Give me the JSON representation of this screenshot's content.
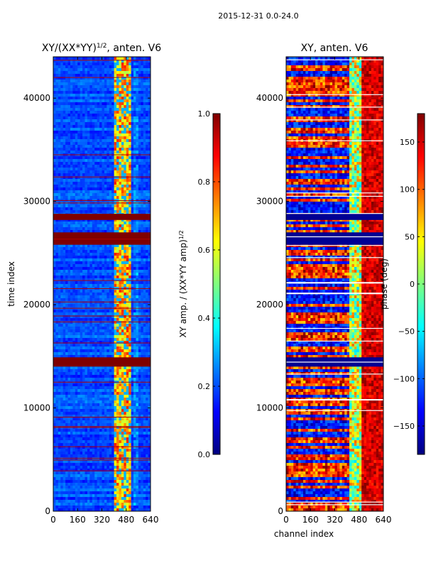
{
  "figure_title": "2015-12-31 0.0-24.0",
  "colormap": [
    "#00007f",
    "#0000ff",
    "#007fff",
    "#00ffff",
    "#7fff7f",
    "#ffff00",
    "#ff7f00",
    "#ff0000",
    "#7f0000"
  ],
  "chart_data": [
    {
      "type": "heatmap",
      "title": "XY/(XX*YY)",
      "title_exponent": "1/2",
      "title_suffix": ", anten. V6",
      "xlabel": "",
      "ylabel": "time index",
      "xlim": [
        0,
        640
      ],
      "ylim": [
        0,
        44000
      ],
      "xticks": [
        0,
        160,
        320,
        480,
        640
      ],
      "yticks": [
        0,
        10000,
        20000,
        30000,
        40000
      ],
      "colorbar": {
        "label": "XY amp. / (XX*YY amp)",
        "label_exponent": "1/2",
        "range": [
          0.0,
          1.0
        ],
        "ticks": [
          "0.0",
          "0.2",
          "0.4",
          "0.6",
          "0.8",
          "1.0"
        ],
        "tick_values": [
          0.0,
          0.2,
          0.4,
          0.6,
          0.8,
          1.0
        ]
      },
      "description_levels": {
        "background": 0.12,
        "band_430_500": 0.55,
        "saturated_rows": 1.0
      },
      "saturated_time_ranges": [
        [
          14000,
          14900
        ],
        [
          25800,
          27000
        ],
        [
          28200,
          28800
        ]
      ]
    },
    {
      "type": "heatmap",
      "title": "XY, anten. V6",
      "xlabel": "channel index",
      "ylabel": "",
      "xlim": [
        0,
        640
      ],
      "ylim": [
        0,
        44000
      ],
      "xticks": [
        0,
        160,
        320,
        480,
        640
      ],
      "yticks": [
        0,
        10000,
        20000,
        30000,
        40000
      ],
      "colorbar": {
        "label": "phase (deg)",
        "range": [
          -180,
          180
        ],
        "ticks": [
          "−150",
          "−100",
          "−50",
          "0",
          "50",
          "100",
          "150"
        ],
        "tick_values": [
          -150,
          -100,
          -50,
          0,
          50,
          100,
          150
        ]
      }
    }
  ]
}
